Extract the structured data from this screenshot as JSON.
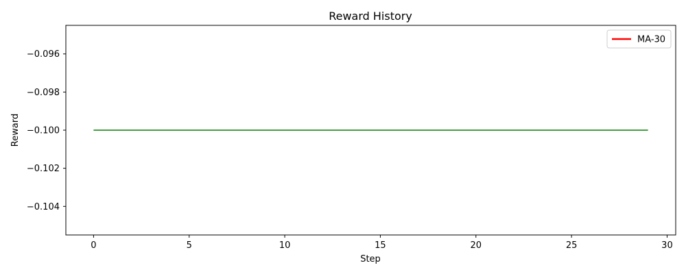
{
  "chart_data": {
    "type": "line",
    "title": "Reward History",
    "xlabel": "Step",
    "ylabel": "Reward",
    "xlim": [
      -1.45,
      30.45
    ],
    "ylim": [
      -0.1055,
      -0.0945
    ],
    "xticks": [
      0,
      5,
      10,
      15,
      20,
      25,
      30
    ],
    "xtick_labels": [
      "0",
      "5",
      "10",
      "15",
      "20",
      "25",
      "30"
    ],
    "yticks": [
      -0.096,
      -0.098,
      -0.1,
      -0.102,
      -0.104
    ],
    "ytick_labels": [
      "−0.096",
      "−0.098",
      "−0.100",
      "−0.102",
      "−0.104"
    ],
    "grid": false,
    "legend_position": "top-right",
    "series": [
      {
        "color": "#008000",
        "x": [
          0,
          1,
          2,
          3,
          4,
          5,
          6,
          7,
          8,
          9,
          10,
          11,
          12,
          13,
          14,
          15,
          16,
          17,
          18,
          19,
          20,
          21,
          22,
          23,
          24,
          25,
          26,
          27,
          28,
          29
        ],
        "y": [
          -0.1,
          -0.1,
          -0.1,
          -0.1,
          -0.1,
          -0.1,
          -0.1,
          -0.1,
          -0.1,
          -0.1,
          -0.1,
          -0.1,
          -0.1,
          -0.1,
          -0.1,
          -0.1,
          -0.1,
          -0.1,
          -0.1,
          -0.1,
          -0.1,
          -0.1,
          -0.1,
          -0.1,
          -0.1,
          -0.1,
          -0.1,
          -0.1,
          -0.1,
          -0.1
        ]
      }
    ],
    "legend": [
      {
        "name": "MA-30",
        "color": "#ff0000"
      }
    ]
  }
}
